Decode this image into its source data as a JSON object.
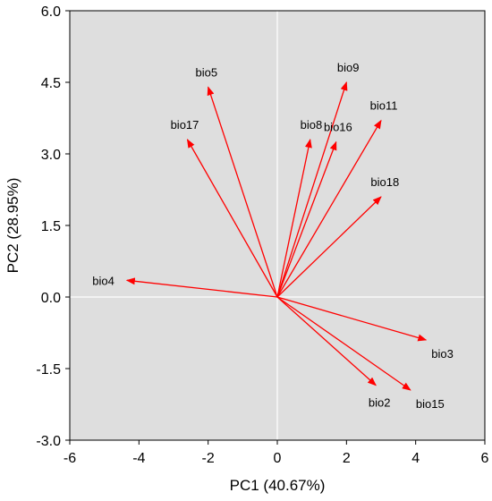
{
  "chart_data": {
    "type": "biplot",
    "xlabel": "PC1 (40.67%)",
    "ylabel": "PC2 (28.95%)",
    "xlim": [
      -6,
      6
    ],
    "ylim": [
      -3.0,
      6.0
    ],
    "x_ticks": [
      -6,
      -4,
      -2,
      0,
      2,
      4,
      6
    ],
    "x_tick_labels": [
      "-6",
      "-4",
      "-2",
      "0",
      "2",
      "4",
      "6"
    ],
    "y_ticks": [
      -3,
      -1.5,
      0,
      1.5,
      3,
      4.5,
      6
    ],
    "y_tick_labels": [
      "-3.0",
      "-1.5",
      "0.0",
      "1.5",
      "3.0",
      "4.5",
      "6.0"
    ],
    "grid": false,
    "zero_lines": true,
    "background_color": "#dedede",
    "arrow_color": "#ff0000",
    "vectors": [
      {
        "name": "bio5",
        "x": -2.0,
        "y": 4.4
      },
      {
        "name": "bio17",
        "x": -2.6,
        "y": 3.3
      },
      {
        "name": "bio4",
        "x": -4.35,
        "y": 0.35
      },
      {
        "name": "bio9",
        "x": 2.0,
        "y": 4.5
      },
      {
        "name": "bio8",
        "x": 0.95,
        "y": 3.3
      },
      {
        "name": "bio16",
        "x": 1.7,
        "y": 3.25
      },
      {
        "name": "bio11",
        "x": 3.0,
        "y": 3.7
      },
      {
        "name": "bio18",
        "x": 3.0,
        "y": 2.1
      },
      {
        "name": "bio3",
        "x": 4.3,
        "y": -0.9
      },
      {
        "name": "bio2",
        "x": 2.85,
        "y": -1.85
      },
      {
        "name": "bio15",
        "x": 3.85,
        "y": -1.95
      }
    ]
  }
}
